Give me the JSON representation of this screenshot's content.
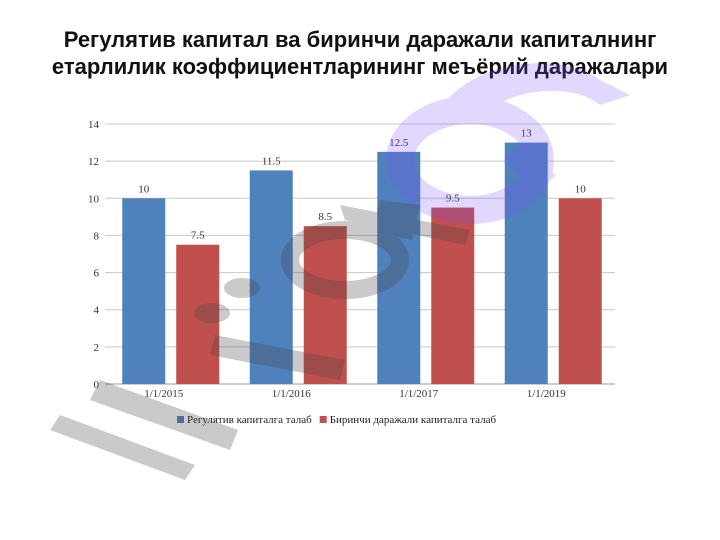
{
  "chart_data": {
    "type": "bar",
    "title": "Регулятив капитал ва биринчи даражали капиталнинг етарлилик коэффициентларининг меъёрий даражалари",
    "categories": [
      "1/1/2015",
      "1/1/2016",
      "1/1/2017",
      "1/1/2019"
    ],
    "series": [
      {
        "name": "Регулятив капиталга талаб",
        "values": [
          10,
          11.5,
          12.5,
          13
        ],
        "color": "#4f81bd"
      },
      {
        "name": "Биринчи даражали капиталга талаб",
        "values": [
          7.5,
          8.5,
          9.5,
          10
        ],
        "color": "#c0504d"
      }
    ],
    "yticks": [
      "0",
      "2",
      "4",
      "6",
      "8",
      "10",
      "12",
      "14"
    ],
    "ylim": [
      0,
      14
    ],
    "grid": true,
    "legend": "bottom"
  }
}
